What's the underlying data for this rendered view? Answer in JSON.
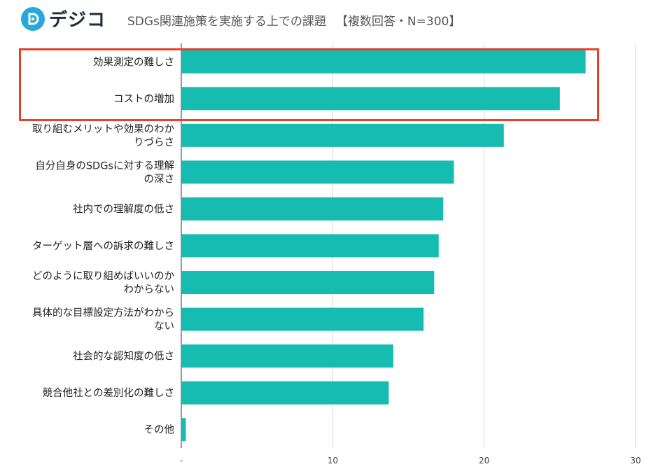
{
  "header": {
    "logo_text": "デジコ",
    "title": "SDGs関連施策を実施する上での課題",
    "subtitle": "【複数回答・N=300】"
  },
  "colors": {
    "bar": "#17bcb0",
    "highlight": "#e8402a",
    "logo": "#27a8d8"
  },
  "chart_data": {
    "type": "bar",
    "orientation": "horizontal",
    "categories": [
      "効果測定の難しさ",
      "コストの増加",
      "取り組むメリットや効果のわかりづらさ",
      "自分自身のSDGsに対する理解の深さ",
      "社内での理解度の低さ",
      "ターゲット層への訴求の難しさ",
      "どのように取り組めばいいのかわからない",
      "具体的な目標設定方法がわからない",
      "社会的な認知度の低さ",
      "競合他社との差別化の難しさ",
      "その他"
    ],
    "category_lines": [
      [
        "効果測定の難しさ"
      ],
      [
        "コストの増加"
      ],
      [
        "取り組むメリットや効果のわか",
        "りづらさ"
      ],
      [
        "自分自身のSDGsに対する理解",
        "の深さ"
      ],
      [
        "社内での理解度の低さ"
      ],
      [
        "ターゲット層への訴求の難しさ"
      ],
      [
        "どのように取り組めばいいのか",
        "わからない"
      ],
      [
        "具体的な目標設定方法がわから",
        "ない"
      ],
      [
        "社会的な認知度の低さ"
      ],
      [
        "競合他社との差別化の難しさ"
      ],
      [
        "その他"
      ]
    ],
    "values": [
      26.7,
      25.0,
      21.3,
      18.0,
      17.3,
      17.0,
      16.7,
      16.0,
      14.0,
      13.7,
      0.3
    ],
    "xlim": [
      0,
      30
    ],
    "xticks": [
      0,
      10,
      20,
      30
    ],
    "xtick_labels": [
      "-",
      "10",
      "20",
      "30"
    ],
    "grid": true,
    "highlighted_categories": [
      "効果測定の難しさ",
      "コストの増加"
    ]
  }
}
